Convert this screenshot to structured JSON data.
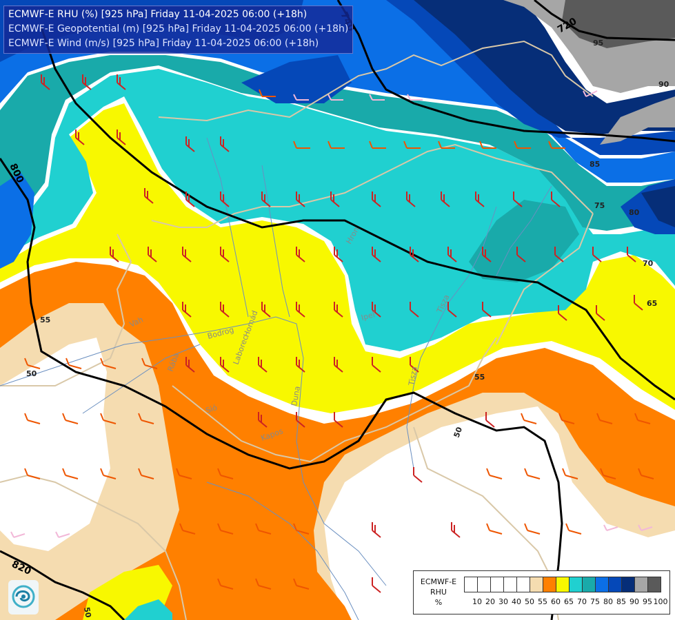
{
  "header": {
    "line1": "ECMWF-E RHU (%) [925 hPa] Friday 11-04-2025 06:00 (+18h)",
    "line2": "ECMWF-E Geopotential (m) [925 hPa] Friday 11-04-2025 06:00 (+18h)",
    "line3": "ECMWF-E Wind (m/s) [925 hPa] Friday 11-04-2025 06:00 (+18h)"
  },
  "legend": {
    "label_line1": "ECMWF-E",
    "label_line2": "RHU",
    "label_line3": "%",
    "levels": [
      "10",
      "20",
      "30",
      "40",
      "50",
      "55",
      "60",
      "65",
      "70",
      "75",
      "80",
      "85",
      "90",
      "95",
      "100"
    ],
    "colors": [
      "#ffffff",
      "#ffffff",
      "#ffffff",
      "#ffffff",
      "#ffffff",
      "#f5dcb0",
      "#ff8000",
      "#f8f800",
      "#20d0d0",
      "#19aaaa",
      "#0b6fe6",
      "#0548b8",
      "#062e78",
      "#a6a6a6",
      "#5a5a5a"
    ]
  },
  "palette": {
    "rhu_50_55": "#f5dcb0",
    "rhu_55_60": "#ff8000",
    "rhu_60_65": "#f8f800",
    "rhu_65_70": "#20d0d0",
    "rhu_70_75": "#19aaaa",
    "rhu_75_80": "#0b6fe6",
    "rhu_80_85": "#0548b8",
    "rhu_85_90": "#062e78",
    "rhu_90_95": "#a6a6a6",
    "rhu_95_100": "#5a5a5a",
    "border": "#d9c8a8",
    "river": "#6a8fc0",
    "isohypse": "#000000"
  },
  "geopotential_labels": [
    "740",
    "720",
    "800",
    "820"
  ],
  "rhu_labels": [
    "95",
    "90",
    "85",
    "80",
    "75",
    "70",
    "65",
    "55",
    "50",
    "50",
    "55",
    "50"
  ],
  "places": [
    "Vah",
    "Hron",
    "Ipeľ",
    "Tisza",
    "Bodrog",
    "Laborec",
    "Hornád",
    "Rába",
    "Sió",
    "Kapos",
    "Duna",
    "Tisza"
  ],
  "logo_icon": "ecmwf-swirl-icon"
}
